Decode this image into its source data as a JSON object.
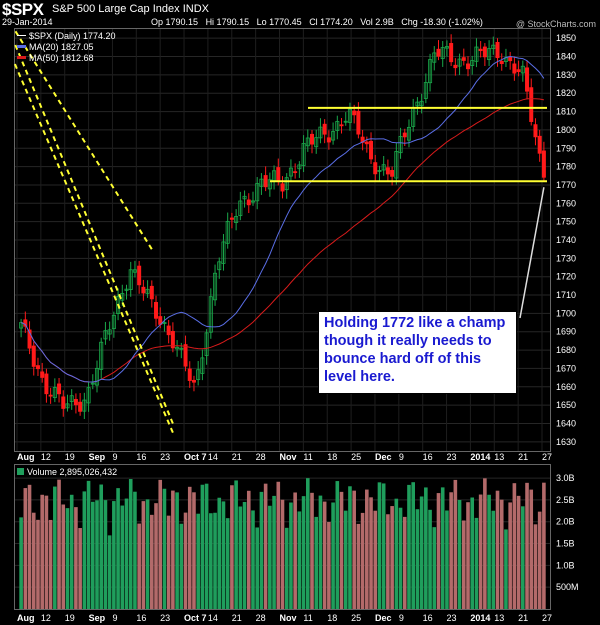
{
  "header": {
    "symbol": "$SPX",
    "name": "S&P 500 Large Cap Index",
    "exchange": "INDX",
    "date": "29-Jan-2014",
    "open": "Op 1790.15",
    "high": "Hi 1790.15",
    "low": "Lo 1770.45",
    "close": "Cl 1774.20",
    "volume": "Vol 2.9B",
    "change": "Chg -18.30 (-1.02%)",
    "watermark": "@ StockCharts.com"
  },
  "legend": {
    "price": "$SPX (Daily) 1774.20",
    "ma20": "MA(20) 1827.05",
    "ma50": "MA(50) 1812.68",
    "volume": "Volume 2,895,026,432"
  },
  "annotation": {
    "text": "Holding 1772 like a champ though it really needs to bounce hard off of this level here."
  },
  "colors": {
    "up": "#1aa84a",
    "down": "#ff1a1a",
    "ma20": "#5a6ee6",
    "ma50": "#d81b1b",
    "trend": "#ffff33",
    "vol_up": "#1f9e5c",
    "vol_down": "#b36a6a"
  },
  "chart_data": [
    {
      "type": "candlestick",
      "x": [
        "Aug 12",
        "Aug 19",
        "Aug 26",
        "Sep 3",
        "Sep 9",
        "Sep 16",
        "Sep 23",
        "Oct 1",
        "Oct 7",
        "Oct 14",
        "Oct 21",
        "Oct 28",
        "Nov 4",
        "Nov 11",
        "Nov 18",
        "Nov 25",
        "Dec 2",
        "Dec 9",
        "Dec 16",
        "Dec 23",
        "Dec 30",
        "Jan 6",
        "Jan 13",
        "Jan 21",
        "Jan 27"
      ],
      "close": [
        1692,
        1664,
        1648,
        1655,
        1690,
        1726,
        1703,
        1687,
        1656,
        1730,
        1758,
        1772,
        1770,
        1791,
        1797,
        1810,
        1785,
        1776,
        1810,
        1842,
        1838,
        1840,
        1843,
        1830,
        1774
      ],
      "xlabels": [
        "Aug",
        "12",
        "19",
        "Sep",
        "9",
        "16",
        "23",
        "Oct 7",
        "14",
        "21",
        "28",
        "Nov",
        "11",
        "18",
        "25",
        "Dec",
        "9",
        "16",
        "23",
        "2014",
        "13",
        "21",
        "27"
      ],
      "yticks": [
        1630,
        1640,
        1650,
        1660,
        1670,
        1680,
        1690,
        1700,
        1710,
        1720,
        1730,
        1740,
        1750,
        1760,
        1770,
        1780,
        1790,
        1800,
        1810,
        1820,
        1830,
        1840,
        1850
      ],
      "ylim": [
        1625,
        1855
      ],
      "moving_averages": [
        {
          "name": "MA(20)",
          "last": 1827.05
        },
        {
          "name": "MA(50)",
          "last": 1812.68
        }
      ],
      "horizontal_lines": [
        1772,
        1812
      ],
      "box": {
        "x": [
          "Dec 23",
          "Jan 24"
        ],
        "y": [
          1823,
          1848
        ]
      },
      "channel": [
        {
          "from": [
            "Sep 23",
            1735
          ],
          "to": [
            "Jan 7",
            1855
          ]
        },
        {
          "from": [
            "Oct 1",
            1635
          ],
          "to": [
            "Jan 24",
            1837
          ]
        },
        {
          "from": [
            "Oct 1",
            1640
          ],
          "to": [
            "Jan 24",
            1848
          ]
        }
      ]
    },
    {
      "type": "bar",
      "title": "Volume",
      "yticks": [
        "500M",
        "1.0B",
        "1.5B",
        "2.0B",
        "2.5B",
        "3.0B"
      ],
      "ylim": [
        0,
        3.3
      ],
      "last": 2.895
    }
  ]
}
